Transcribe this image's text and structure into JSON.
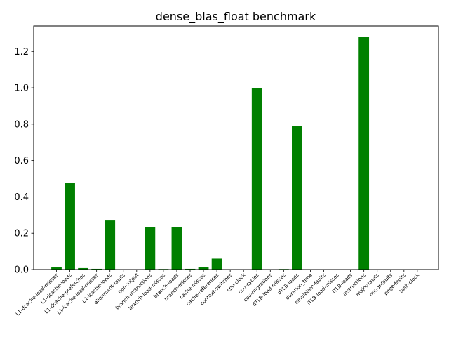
{
  "chart_data": {
    "type": "bar",
    "title": "dense_blas_float benchmark",
    "xlabel": "",
    "ylabel": "",
    "ylim": [
      0,
      1.34
    ],
    "yticks": [
      "0.0",
      "0.2",
      "0.4",
      "0.6",
      "0.8",
      "1.0",
      "1.2"
    ],
    "grid": false,
    "bar_color": "#008000",
    "categories": [
      "L1-dcache-load-misses",
      "L1-dcache-loads",
      "L1-dcache-prefetches",
      "L1-icache-load-misses",
      "L1-icache-loads",
      "alignment-faults",
      "bpf-output",
      "branch-instructions",
      "branch-load-misses",
      "branch-loads",
      "branch-misses",
      "cache-misses",
      "cache-references",
      "context-switches",
      "cpu-clock",
      "cpu-cycles",
      "cpu-migrations",
      "dTLB-load-misses",
      "dTLB-loads",
      "duration_time",
      "emulation-faults",
      "iTLB-load-misses",
      "iTLB-loads",
      "instructions",
      "major-faults",
      "minor-faults",
      "page-faults",
      "task-clock"
    ],
    "values": [
      0.012,
      0.475,
      0.008,
      0.004,
      0.27,
      0.0,
      0.0,
      0.235,
      0.003,
      0.235,
      0.004,
      0.015,
      0.06,
      0.0,
      0.0,
      1.0,
      0.0,
      0.003,
      0.79,
      0.0,
      0.0,
      0.0,
      0.0,
      1.28,
      0.0,
      0.0,
      0.0,
      0.0
    ]
  }
}
